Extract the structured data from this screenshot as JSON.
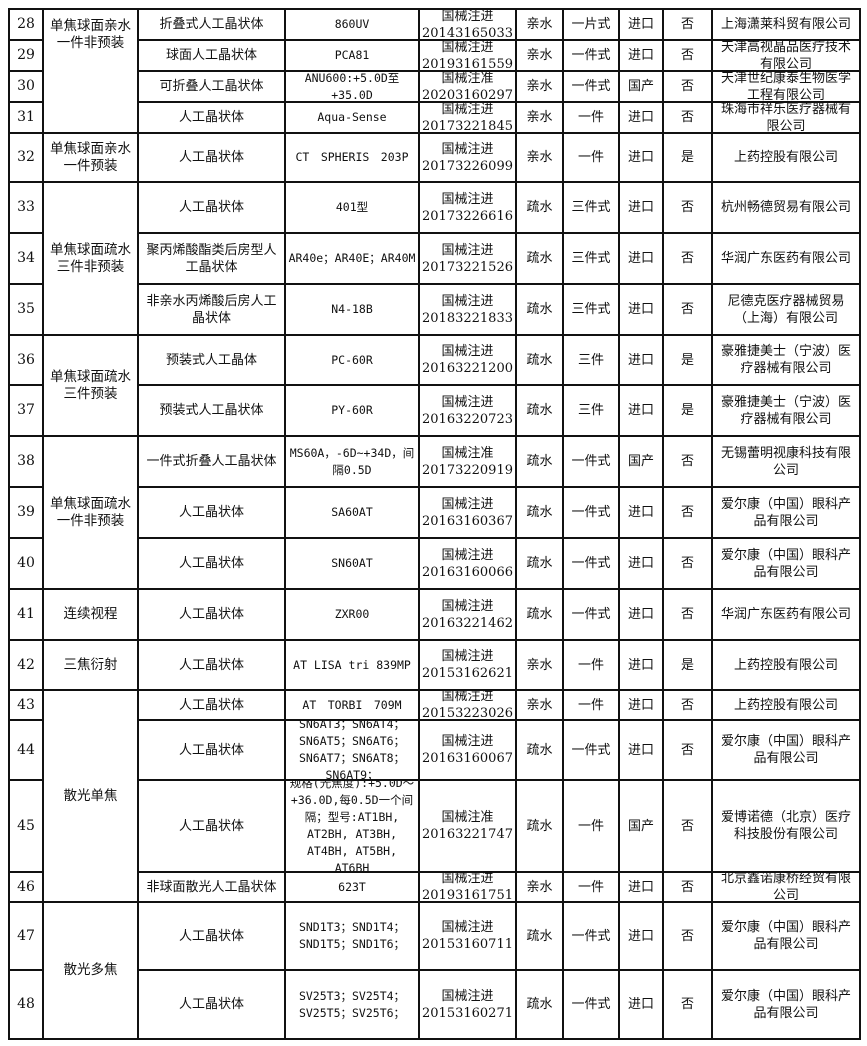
{
  "groups": [
    {
      "category": "单焦球面亲水一件非预装",
      "rows": [
        0,
        1,
        2,
        3
      ]
    },
    {
      "category": "单焦球面亲水一件预装",
      "rows": [
        4
      ]
    },
    {
      "category": "单焦球面疏水三件非预装",
      "rows": [
        5,
        6,
        7
      ]
    },
    {
      "category": "单焦球面疏水三件预装",
      "rows": [
        8,
        9
      ]
    },
    {
      "category": "单焦球面疏水一件非预装",
      "rows": [
        10,
        11,
        12
      ]
    },
    {
      "category": "连续视程",
      "rows": [
        13
      ]
    },
    {
      "category": "三焦衍射",
      "rows": [
        14
      ]
    },
    {
      "category": "散光单焦",
      "rows": [
        15,
        16,
        17,
        18
      ]
    },
    {
      "category": "散光多焦",
      "rows": [
        19,
        20
      ]
    }
  ],
  "rows": [
    {
      "no": "28",
      "name": "折叠式人工晶状体",
      "model": "860UV",
      "reg": "国械注进 20143165033",
      "hydro": "亲水",
      "piece": "一片式",
      "origin": "进口",
      "preloaded": "否",
      "company": "上海潇莱科贸有限公司"
    },
    {
      "no": "29",
      "name": "球面人工晶状体",
      "model": "PCA81",
      "reg": "国械注进 20193161559",
      "hydro": "亲水",
      "piece": "一件式",
      "origin": "进口",
      "preloaded": "否",
      "company": "天津高视晶品医疗技术有限公司"
    },
    {
      "no": "30",
      "name": "可折叠人工晶状体",
      "model": "ANU600:+5.0D至+35.0D",
      "reg": "国械注准 20203160297",
      "hydro": "亲水",
      "piece": "一件式",
      "origin": "国产",
      "preloaded": "否",
      "company": "天津世纪康泰生物医学工程有限公司"
    },
    {
      "no": "31",
      "name": "人工晶状体",
      "model": "Aqua-Sense",
      "reg": "国械注进 20173221845",
      "hydro": "亲水",
      "piece": "一件",
      "origin": "进口",
      "preloaded": "否",
      "company": "珠海市祥乐医疗器械有限公司"
    },
    {
      "no": "32",
      "name": "人工晶状体",
      "model": "CT　SPHERIS　203P",
      "reg": "国械注进 20173226099",
      "hydro": "亲水",
      "piece": "一件",
      "origin": "进口",
      "preloaded": "是",
      "company": "上药控股有限公司"
    },
    {
      "no": "33",
      "name": "人工晶状体",
      "model": "401型",
      "reg": "国械注进 20173226616",
      "hydro": "疏水",
      "piece": "三件式",
      "origin": "进口",
      "preloaded": "否",
      "company": "杭州畅德贸易有限公司"
    },
    {
      "no": "34",
      "name": "聚丙烯酸酯类后房型人工晶状体",
      "model": "AR40e；AR40E；AR40M",
      "reg": "国械注进 20173221526",
      "hydro": "疏水",
      "piece": "三件式",
      "origin": "进口",
      "preloaded": "否",
      "company": "华润广东医药有限公司"
    },
    {
      "no": "35",
      "name": "非亲水丙烯酸后房人工晶状体",
      "model": "N4-18B",
      "reg": "国械注进 20183221833",
      "hydro": "疏水",
      "piece": "三件式",
      "origin": "进口",
      "preloaded": "否",
      "company": "尼德克医疗器械贸易（上海）有限公司"
    },
    {
      "no": "36",
      "name": "预装式人工晶体",
      "model": "PC-60R",
      "reg": "国械注进 20163221200",
      "hydro": "疏水",
      "piece": "三件",
      "origin": "进口",
      "preloaded": "是",
      "company": "豪雅捷美士（宁波）医疗器械有限公司"
    },
    {
      "no": "37",
      "name": "预装式人工晶状体",
      "model": "PY-60R",
      "reg": "国械注进 20163220723",
      "hydro": "疏水",
      "piece": "三件",
      "origin": "进口",
      "preloaded": "是",
      "company": "豪雅捷美士（宁波）医疗器械有限公司"
    },
    {
      "no": "38",
      "name": "一件式折叠人工晶状体",
      "model": "MS60A，-6D~+34D，间隔0.5D",
      "reg": "国械注准 20173220919",
      "hydro": "疏水",
      "piece": "一件式",
      "origin": "国产",
      "preloaded": "否",
      "company": "无锡蕾明视康科技有限公司"
    },
    {
      "no": "39",
      "name": "人工晶状体",
      "model": "SA60AT",
      "reg": "国械注进 20163160367",
      "hydro": "疏水",
      "piece": "一件式",
      "origin": "进口",
      "preloaded": "否",
      "company": "爱尔康（中国）眼科产品有限公司"
    },
    {
      "no": "40",
      "name": "人工晶状体",
      "model": "SN60AT",
      "reg": "国械注进 20163160066",
      "hydro": "疏水",
      "piece": "一件式",
      "origin": "进口",
      "preloaded": "否",
      "company": "爱尔康（中国）眼科产品有限公司"
    },
    {
      "no": "41",
      "name": "人工晶状体",
      "model": "ZXR00",
      "reg": "国械注进 20163221462",
      "hydro": "疏水",
      "piece": "一件式",
      "origin": "进口",
      "preloaded": "否",
      "company": "华润广东医药有限公司"
    },
    {
      "no": "42",
      "name": "人工晶状体",
      "model": "AT LISA tri 839MP",
      "reg": "国械注进 20153162621",
      "hydro": "亲水",
      "piece": "一件",
      "origin": "进口",
      "preloaded": "是",
      "company": "上药控股有限公司"
    },
    {
      "no": "43",
      "name": "人工晶状体",
      "model": "AT　TORBI　709M",
      "reg": "国械注进 20153223026",
      "hydro": "亲水",
      "piece": "一件",
      "origin": "进口",
      "preloaded": "否",
      "company": "上药控股有限公司"
    },
    {
      "no": "44",
      "name": "人工晶状体",
      "model": "SN6AT3；SN6AT4；SN6AT5；SN6AT6；SN6AT7；SN6AT8；SN6AT9；",
      "reg": "国械注进 20163160067",
      "hydro": "疏水",
      "piece": "一件式",
      "origin": "进口",
      "preloaded": "否",
      "company": "爱尔康（中国）眼科产品有限公司"
    },
    {
      "no": "45",
      "name": "人工晶状体",
      "model": "规格(光焦度):+5.0D～+36.0D,每0.5D一个间隔；型号:AT1BH, AT2BH, AT3BH, AT4BH, AT5BH, AT6BH",
      "reg": "国械注准 20163221747",
      "hydro": "疏水",
      "piece": "一件",
      "origin": "国产",
      "preloaded": "否",
      "company": "爱博诺德（北京）医疗科技股份有限公司"
    },
    {
      "no": "46",
      "name": "非球面散光人工晶状体",
      "model": "623T",
      "reg": "国械注进 20193161751",
      "hydro": "亲水",
      "piece": "一件",
      "origin": "进口",
      "preloaded": "否",
      "company": "北京鑫诺康桥经贸有限公司"
    },
    {
      "no": "47",
      "name": "人工晶状体",
      "model": "SND1T3；SND1T4；SND1T5；SND1T6；",
      "reg": "国械注进 20153160711",
      "hydro": "疏水",
      "piece": "一件式",
      "origin": "进口",
      "preloaded": "否",
      "company": "爱尔康（中国）眼科产品有限公司"
    },
    {
      "no": "48",
      "name": "人工晶状体",
      "model": "SV25T3；SV25T4；SV25T5；SV25T6；",
      "reg": "国械注进 20153160271",
      "hydro": "疏水",
      "piece": "一件式",
      "origin": "进口",
      "preloaded": "否",
      "company": "爱尔康（中国）眼科产品有限公司"
    }
  ]
}
